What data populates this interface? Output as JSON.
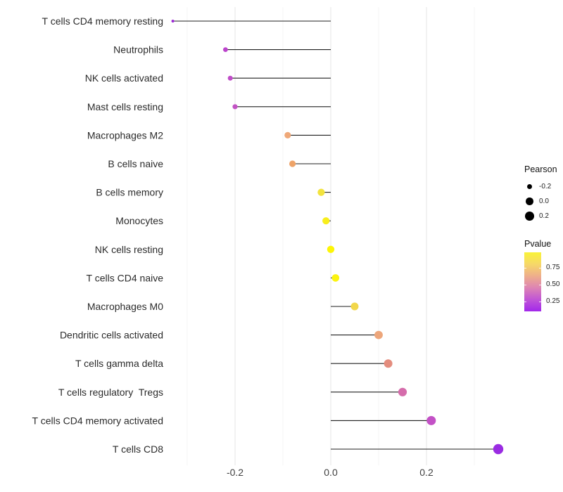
{
  "chart_data": {
    "type": "scatter",
    "subtype": "lollipop",
    "orientation": "horizontal",
    "title": "",
    "xlabel": "",
    "ylabel": "",
    "grid": "vertical-only",
    "legend_position": "right",
    "x_axis": {
      "ticks": [
        -0.2,
        0.0,
        0.2
      ],
      "tick_labels": [
        "-0.2",
        "0.0",
        "0.2"
      ],
      "minor_ticks": [
        -0.3,
        -0.1,
        0.1,
        0.3
      ],
      "range": [
        -0.36,
        0.38
      ]
    },
    "categories": [
      "T cells CD4 memory resting",
      "Neutrophils",
      "NK cells activated",
      "Mast cells resting",
      "Macrophages M2",
      "B cells naive",
      "B cells memory",
      "Monocytes",
      "NK cells resting",
      "T cells CD4 naive",
      "Macrophages M0",
      "Dendritic cells activated",
      "T cells gamma delta",
      "T cells regulatory  Tregs",
      "T cells CD4 memory activated",
      "T cells CD8"
    ],
    "points": [
      {
        "label": "T cells CD4 memory resting",
        "pearson": -0.33,
        "pvalue": 0.15,
        "color": "#9d2ad6"
      },
      {
        "label": "Neutrophils",
        "pearson": -0.22,
        "pvalue": 0.27,
        "color": "#bc44cc"
      },
      {
        "label": "NK cells activated",
        "pearson": -0.21,
        "pvalue": 0.29,
        "color": "#c04cc8"
      },
      {
        "label": "Mast cells resting",
        "pearson": -0.2,
        "pvalue": 0.31,
        "color": "#c253c4"
      },
      {
        "label": "Macrophages M2",
        "pearson": -0.09,
        "pvalue": 0.64,
        "color": "#efa878"
      },
      {
        "label": "B cells naive",
        "pearson": -0.08,
        "pvalue": 0.66,
        "color": "#eea368"
      },
      {
        "label": "B cells memory",
        "pearson": -0.02,
        "pvalue": 0.85,
        "color": "#f2e33e"
      },
      {
        "label": "Monocytes",
        "pearson": -0.01,
        "pvalue": 0.91,
        "color": "#f8ee1c"
      },
      {
        "label": "NK cells resting",
        "pearson": 0.0,
        "pvalue": 0.97,
        "color": "#fdf506"
      },
      {
        "label": "T cells CD4 naive",
        "pearson": 0.01,
        "pvalue": 0.94,
        "color": "#fbf310"
      },
      {
        "label": "Macrophages M0",
        "pearson": 0.05,
        "pvalue": 0.79,
        "color": "#f2d74b"
      },
      {
        "label": "Dendritic cells activated",
        "pearson": 0.1,
        "pvalue": 0.63,
        "color": "#eda67b"
      },
      {
        "label": "T cells gamma delta",
        "pearson": 0.12,
        "pvalue": 0.56,
        "color": "#e48d7e"
      },
      {
        "label": "T cells regulatory  Tregs",
        "pearson": 0.15,
        "pvalue": 0.43,
        "color": "#d56cab"
      },
      {
        "label": "T cells CD4 memory activated",
        "pearson": 0.21,
        "pvalue": 0.3,
        "color": "#c351c6"
      },
      {
        "label": "T cells CD8",
        "pearson": 0.35,
        "pvalue": 0.11,
        "color": "#9a2ce2"
      }
    ]
  },
  "legend": {
    "pearson": {
      "title": "Pearson",
      "dot_color": "#000000",
      "entries": [
        {
          "label": "-0.2",
          "value": -0.2
        },
        {
          "label": "0.0",
          "value": 0.0
        },
        {
          "label": "0.2",
          "value": 0.2
        }
      ]
    },
    "pvalue": {
      "title": "Pvalue",
      "bar_domain": [
        0.98,
        0.1
      ],
      "ticks": [
        {
          "label": "0.75",
          "value": 0.75
        },
        {
          "label": "0.50",
          "value": 0.5
        },
        {
          "label": "0.25",
          "value": 0.25
        }
      ],
      "gradient": [
        "#f9f338",
        "#f6d869",
        "#eeae8b",
        "#dd84b4",
        "#c055d6",
        "#a228ea"
      ]
    }
  },
  "colors": {
    "background": "#ffffff",
    "grid_major": "#e9e9e9",
    "grid_minor": "#f4f4f4",
    "stem": "#1f1f1f",
    "axis_text": "#404040"
  }
}
